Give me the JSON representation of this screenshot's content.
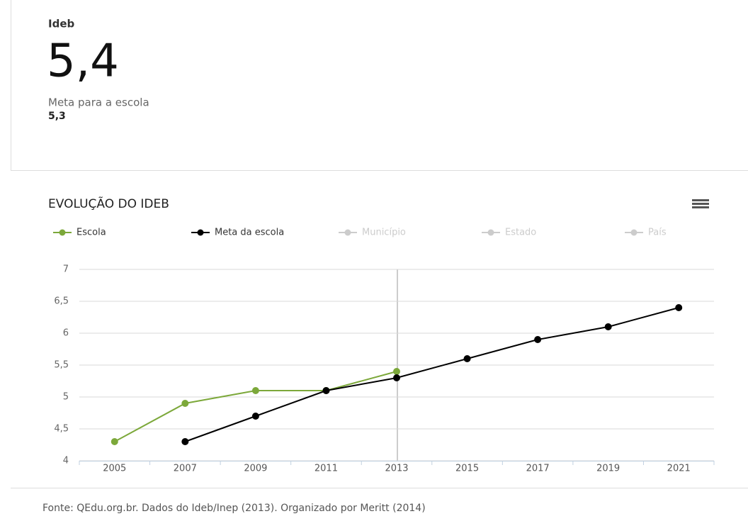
{
  "summary": {
    "label": "Ideb",
    "value": "5,4",
    "goal_label": "Meta para a escola",
    "goal_value": "5,3"
  },
  "chart_data": {
    "type": "line",
    "title": "EVOLUÇÃO DO IDEB",
    "categories": [
      "2005",
      "2007",
      "2009",
      "2011",
      "2013",
      "2015",
      "2017",
      "2019",
      "2021"
    ],
    "series": [
      {
        "name": "Escola",
        "color": "#7ca83a",
        "visible": true,
        "values": [
          4.3,
          4.9,
          5.1,
          5.1,
          5.4,
          null,
          null,
          null,
          null
        ]
      },
      {
        "name": "Meta da escola",
        "color": "#000000",
        "visible": true,
        "values": [
          null,
          4.3,
          4.7,
          5.1,
          5.3,
          5.6,
          5.9,
          6.1,
          6.4
        ]
      },
      {
        "name": "Município",
        "color": "#cccccc",
        "visible": false,
        "values": [
          null,
          null,
          null,
          null,
          null,
          null,
          null,
          null,
          null
        ]
      },
      {
        "name": "Estado",
        "color": "#cccccc",
        "visible": false,
        "values": [
          null,
          null,
          null,
          null,
          null,
          null,
          null,
          null,
          null
        ]
      },
      {
        "name": "País",
        "color": "#cccccc",
        "visible": false,
        "values": [
          null,
          null,
          null,
          null,
          null,
          null,
          null,
          null,
          null
        ]
      }
    ],
    "ylim": [
      4,
      7
    ],
    "yticks": [
      4,
      {
        "value": 4.5,
        "label": "4,5"
      },
      5,
      {
        "value": 5.5,
        "label": "5,5"
      },
      6,
      {
        "value": 6.5,
        "label": "6,5"
      },
      7
    ],
    "grid": true
  },
  "footer": "Fonte: QEdu.org.br. Dados do Ideb/Inep (2013). Organizado por Meritt (2014)"
}
